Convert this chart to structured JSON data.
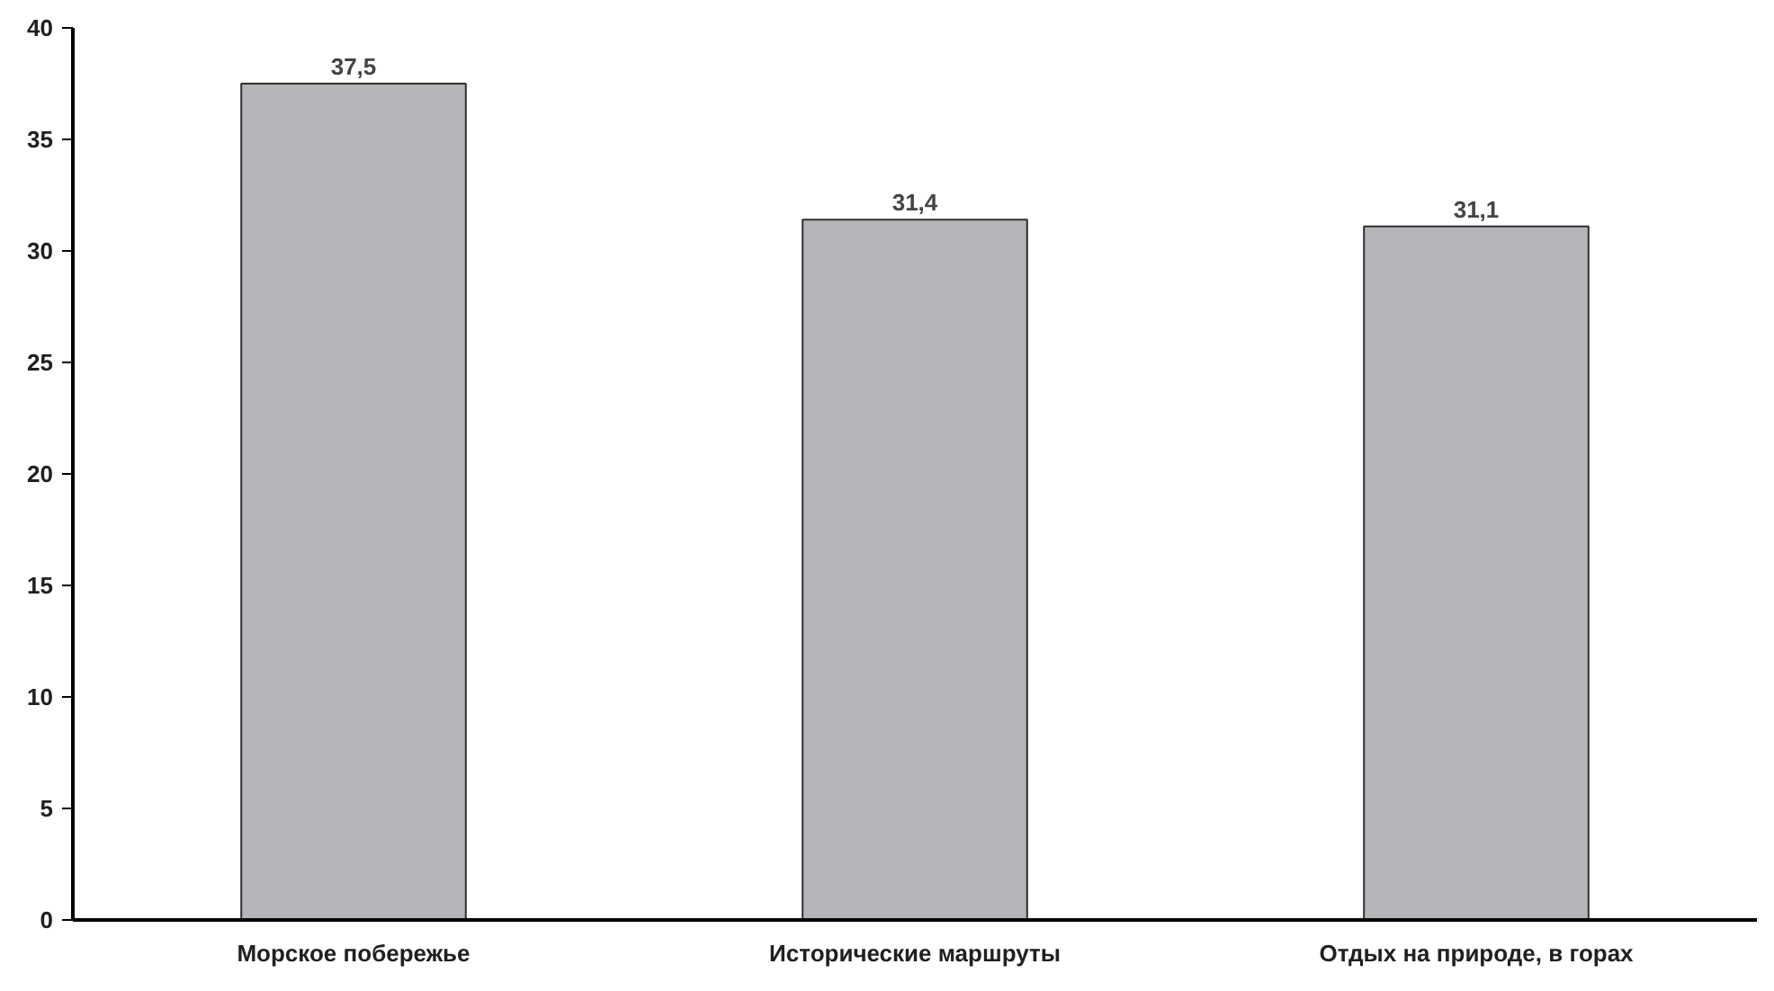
{
  "chart_data": {
    "type": "bar",
    "categories": [
      "Морское побережье",
      "Исторические маршруты",
      "Отдых на природе, в горах"
    ],
    "values": [
      37.5,
      31.4,
      31.1
    ],
    "value_labels": [
      "37,5",
      "31,4",
      "31,1"
    ],
    "color": "#b4b4b9",
    "ylim": [
      0,
      40
    ],
    "yticks": [
      0,
      5,
      10,
      15,
      20,
      25,
      30,
      35,
      40
    ],
    "grid": false
  }
}
